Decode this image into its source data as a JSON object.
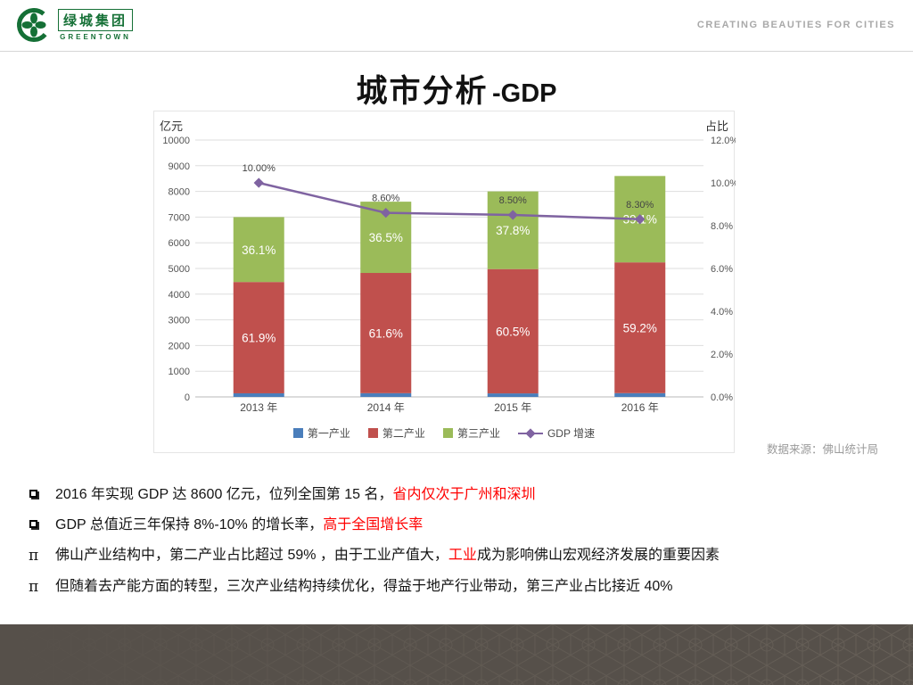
{
  "header": {
    "logo_cn": "绿城集团",
    "logo_en": "GREENTOWN",
    "logo_icon": "greentown-clover-icon",
    "tagline": "CREATING BEAUTIES FOR CITIES"
  },
  "title": {
    "cn": "城市分析",
    "suffix": "-GDP"
  },
  "chart": {
    "left_axis_label": "亿元",
    "right_axis_label": "占比",
    "source": "数据来源：佛山统计局",
    "legend": [
      {
        "label": "第一产业",
        "type": "square",
        "color": "#4a7ebb"
      },
      {
        "label": "第二产业",
        "type": "square",
        "color": "#c0504d"
      },
      {
        "label": "第三产业",
        "type": "square",
        "color": "#9bbb59"
      },
      {
        "label": "GDP 增速",
        "type": "line",
        "color": "#7f63a1"
      }
    ]
  },
  "chart_data": {
    "type": "bar",
    "subtype": "stacked-bar-with-line",
    "categories": [
      "2013 年",
      "2014 年",
      "2015 年",
      "2016 年"
    ],
    "totals": [
      7000,
      7600,
      8000,
      8600
    ],
    "bar_series": [
      {
        "name": "第一产业",
        "color": "#4a7ebb",
        "pct": [
          2.0,
          1.9,
          1.7,
          1.7
        ],
        "labels": [
          "",
          "",
          "",
          ""
        ]
      },
      {
        "name": "第二产业",
        "color": "#c0504d",
        "pct": [
          61.9,
          61.6,
          60.5,
          59.2
        ],
        "labels": [
          "61.9%",
          "61.6%",
          "60.5%",
          "59.2%"
        ]
      },
      {
        "name": "第三产业",
        "color": "#9bbb59",
        "pct": [
          36.1,
          36.5,
          37.8,
          39.1
        ],
        "labels": [
          "36.1%",
          "36.5%",
          "37.8%",
          "39.1%"
        ]
      }
    ],
    "line_series": {
      "name": "GDP增速",
      "color": "#7f63a1",
      "values": [
        10.0,
        8.6,
        8.5,
        8.3
      ],
      "labels": [
        "10.00%",
        "8.60%",
        "8.50%",
        "8.30%"
      ]
    },
    "left_axis": {
      "min": 0,
      "max": 10000,
      "step": 1000,
      "label": "亿元"
    },
    "right_axis": {
      "min": 0,
      "max": 12,
      "step": 2,
      "format": "%",
      "label": "占比"
    },
    "grid": true,
    "legend_position": "bottom"
  },
  "bullets": [
    {
      "marker": "square",
      "segments": [
        {
          "text": "2016 年实现 GDP 达 8600 亿元，位列全国第 15 名，",
          "style": "normal"
        },
        {
          "text": "省内仅次于广州和深圳",
          "style": "red"
        }
      ]
    },
    {
      "marker": "square",
      "segments": [
        {
          "text": "GDP 总值近三年保持 8%-10% 的增长率，",
          "style": "normal"
        },
        {
          "text": "高于全国增长率",
          "style": "red"
        }
      ]
    },
    {
      "marker": "pi",
      "segments": [
        {
          "text": "佛山产业结构中，第二产业占比超过 59% ，由于工业产值大，",
          "style": "normal"
        },
        {
          "text": "工业",
          "style": "red"
        },
        {
          "text": "成为影响佛山宏观经济发展的重要因素",
          "style": "normal"
        }
      ]
    },
    {
      "marker": "pi",
      "segments": [
        {
          "text": "但随着去产能方面的转型，三次产业结构持续优化，得益于地产行业带动，第三产业占比接近 40%",
          "style": "normal"
        }
      ]
    }
  ],
  "colors": {
    "primary_industry": "#4a7ebb",
    "secondary_industry": "#c0504d",
    "tertiary_industry": "#9bbb59",
    "gdp_growth_line": "#7f63a1",
    "highlight_text": "#ff0000",
    "footer": "#56504a",
    "brand_green": "#157036"
  }
}
